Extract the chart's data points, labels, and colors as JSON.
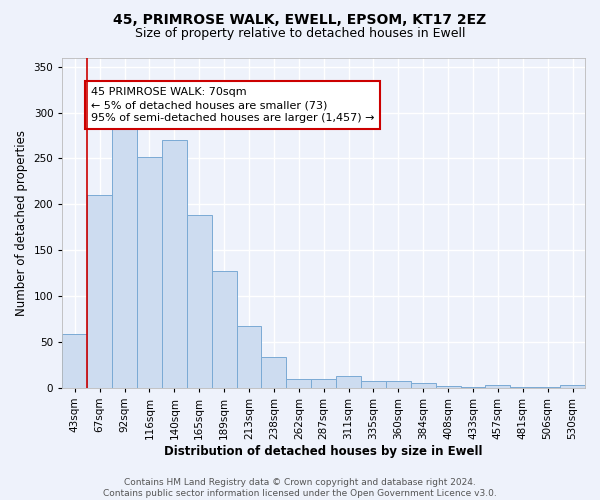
{
  "title": "45, PRIMROSE WALK, EWELL, EPSOM, KT17 2EZ",
  "subtitle": "Size of property relative to detached houses in Ewell",
  "xlabel": "Distribution of detached houses by size in Ewell",
  "ylabel": "Number of detached properties",
  "categories": [
    "43sqm",
    "67sqm",
    "92sqm",
    "116sqm",
    "140sqm",
    "165sqm",
    "189sqm",
    "213sqm",
    "238sqm",
    "262sqm",
    "287sqm",
    "311sqm",
    "335sqm",
    "360sqm",
    "384sqm",
    "408sqm",
    "433sqm",
    "457sqm",
    "481sqm",
    "506sqm",
    "530sqm"
  ],
  "values": [
    59,
    210,
    283,
    252,
    270,
    188,
    127,
    67,
    34,
    10,
    10,
    13,
    7,
    7,
    5,
    2,
    1,
    3,
    1,
    1,
    3
  ],
  "bar_color": "#cddcf0",
  "bar_edge_color": "#7aaad4",
  "highlight_line_color": "#cc0000",
  "annotation_text": "45 PRIMROSE WALK: 70sqm\n← 5% of detached houses are smaller (73)\n95% of semi-detached houses are larger (1,457) →",
  "annotation_box_color": "#ffffff",
  "annotation_box_edge_color": "#cc0000",
  "ylim": [
    0,
    360
  ],
  "yticks": [
    0,
    50,
    100,
    150,
    200,
    250,
    300,
    350
  ],
  "footer_text": "Contains HM Land Registry data © Crown copyright and database right 2024.\nContains public sector information licensed under the Open Government Licence v3.0.",
  "background_color": "#eef2fb",
  "plot_background_color": "#eef2fb",
  "grid_color": "#ffffff",
  "title_fontsize": 10,
  "subtitle_fontsize": 9,
  "axis_label_fontsize": 8.5,
  "tick_fontsize": 7.5,
  "annotation_fontsize": 8,
  "footer_fontsize": 6.5
}
